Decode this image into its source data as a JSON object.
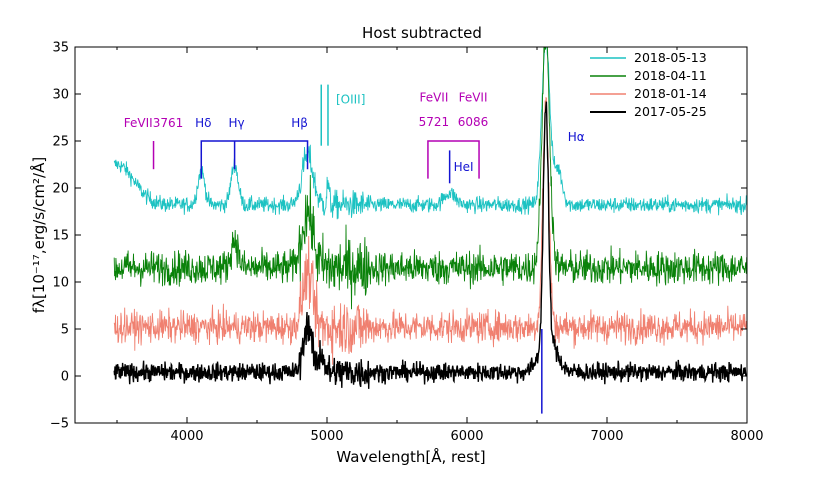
{
  "chart_data": {
    "type": "line",
    "title": "Host subtracted",
    "xlabel": "Wavelength[Å, rest]",
    "ylabel": "fλ[10⁻¹⁷,erg/s/cm²/Å]",
    "xlim": [
      3200,
      8000
    ],
    "ylim": [
      -5,
      35
    ],
    "xticks": [
      "4000",
      "5000",
      "6000",
      "7000",
      "8000"
    ],
    "yticks": [
      "−5",
      "0",
      "5",
      "10",
      "15",
      "20",
      "25",
      "30",
      "35"
    ],
    "legend_position": "top-right",
    "series": [
      {
        "name": "2018-05-13",
        "color": "#1cc2c2",
        "baseline": 18.2,
        "noise": 0.6,
        "features": [
          [
            3500,
            22.5,
            120
          ],
          [
            4102,
            21.8,
            25
          ],
          [
            4340,
            22.5,
            25
          ],
          [
            4861,
            23.5,
            40
          ],
          [
            5007,
            20.5,
            8
          ],
          [
            5876,
            19.5,
            40
          ],
          [
            6563,
            36,
            28
          ],
          [
            6650,
            22,
            30
          ]
        ]
      },
      {
        "name": "2018-04-11",
        "color": "#0a820a",
        "baseline": 11.5,
        "noise": 1.3,
        "features": [
          [
            4340,
            14.5,
            25
          ],
          [
            4861,
            17.5,
            40
          ],
          [
            6563,
            36,
            28
          ]
        ]
      },
      {
        "name": "2018-01-14",
        "color": "#f08070",
        "baseline": 5.2,
        "noise": 1.2,
        "features": [
          [
            4861,
            11,
            35
          ],
          [
            6563,
            29,
            22
          ]
        ]
      },
      {
        "name": "2017-05-25",
        "color": "#000000",
        "baseline": 0.4,
        "noise": 0.7,
        "features": [
          [
            4861,
            5.5,
            30
          ],
          [
            4959,
            2.5,
            20
          ],
          [
            6563,
            25.5,
            18
          ],
          [
            6580,
            4,
            60
          ]
        ]
      }
    ],
    "annotations": [
      {
        "label": "FeVII3761",
        "x": 3761,
        "color": "#b400b4"
      },
      {
        "label": "Hδ",
        "x": 4102,
        "color": "#1414d2"
      },
      {
        "label": "Hγ",
        "x": 4340,
        "color": "#1414d2"
      },
      {
        "label": "Hβ",
        "x": 4861,
        "color": "#1414d2"
      },
      {
        "label": "[OIII]",
        "x": 4959,
        "x2": 5007,
        "color": "#1cc2c2"
      },
      {
        "label_line1": "FeVII",
        "label_line2": "5721",
        "x": 5721,
        "color": "#b400b4"
      },
      {
        "label_line1": "FeVII",
        "label_line2": "6086",
        "x": 6086,
        "color": "#b400b4"
      },
      {
        "label": "HeI",
        "x": 5876,
        "color": "#1414d2"
      },
      {
        "label": "Hα",
        "x": 6563,
        "color": "#1414d2"
      }
    ]
  }
}
